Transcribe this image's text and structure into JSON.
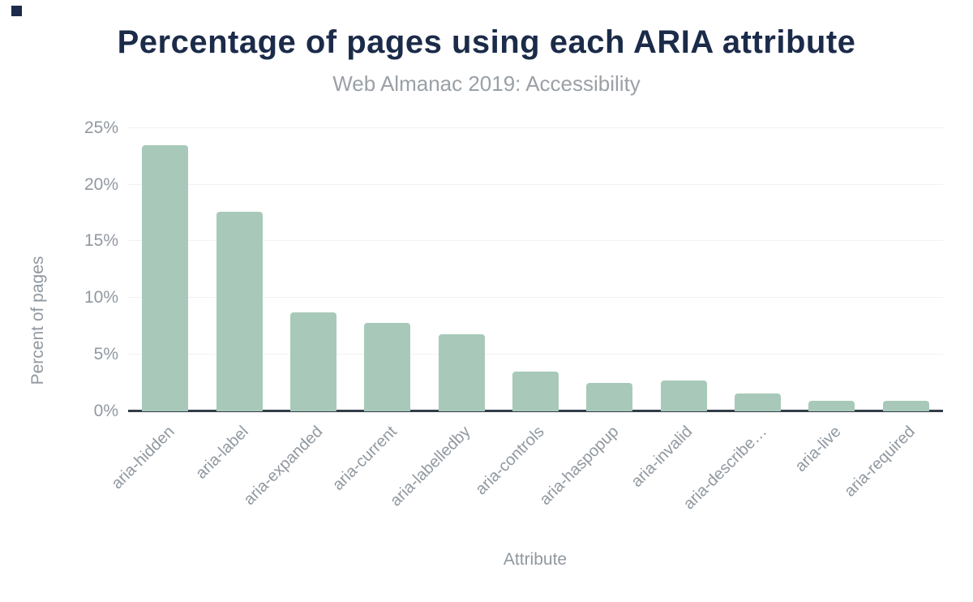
{
  "page": {
    "background": "#ffffff"
  },
  "logo_mark": {
    "color": "#1b2b49"
  },
  "chart_data": {
    "type": "bar",
    "title": "Percentage of pages using each ARIA attribute",
    "subtitle": "Web Almanac 2019: Accessibility",
    "xlabel": "Attribute",
    "ylabel": "Percent of pages",
    "categories": [
      "aria-hidden",
      "aria-label",
      "aria-expanded",
      "aria-current",
      "aria-labelledby",
      "aria-controls",
      "aria-haspopup",
      "aria-invalid",
      "aria-describe…",
      "aria-live",
      "aria-required"
    ],
    "values": [
      23.5,
      17.6,
      8.7,
      7.8,
      6.8,
      3.5,
      2.5,
      2.7,
      1.6,
      0.9,
      0.9
    ],
    "unit": "%",
    "ylim": [
      0,
      25.7
    ],
    "yticks": [
      "0%",
      "5%",
      "10%",
      "15%",
      "20%",
      "25%"
    ],
    "ytick_values": [
      0,
      5,
      10,
      15,
      20,
      25
    ],
    "grid": true,
    "legend": false,
    "colors": {
      "bar": "#a8c9b9",
      "axis_line": "#333c49",
      "gridline": "#f1f1f2",
      "labels": "#9098a0",
      "title": "#1b2b49",
      "subtitle": "#9aa0a6"
    }
  }
}
